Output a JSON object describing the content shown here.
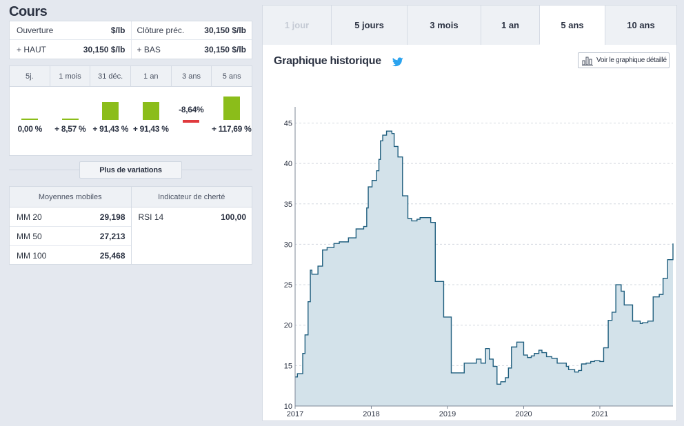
{
  "cours": {
    "title": "Cours",
    "rows": [
      [
        {
          "label": "Ouverture",
          "value": "$/lb"
        },
        {
          "label": "Clôture préc.",
          "value": "30,150 $/lb"
        }
      ],
      [
        {
          "label": "+ HAUT",
          "value": "30,150 $/lb"
        },
        {
          "label": "+ BAS",
          "value": "30,150 $/lb"
        }
      ]
    ]
  },
  "variations": {
    "periods": [
      "5j.",
      "1 mois",
      "31 déc.",
      "1 an",
      "3 ans",
      "5 ans"
    ],
    "values": [
      0.0,
      8.57,
      91.43,
      91.43,
      -8.64,
      117.69
    ],
    "labels": [
      "0,00 %",
      "+ 8,57 %",
      "+ 91,43 %",
      "+ 91,43 %",
      "-8,64%",
      "+ 117,69 %"
    ],
    "more_button": "Plus de variations",
    "pos_color": "#8bbd1a",
    "neg_color": "#e03a3e"
  },
  "indicators": {
    "moving_averages": {
      "header": "Moyennes mobiles",
      "rows": [
        {
          "label": "MM 20",
          "value": "29,198"
        },
        {
          "label": "MM 50",
          "value": "27,213"
        },
        {
          "label": "MM 100",
          "value": "25,468"
        }
      ]
    },
    "expensiveness": {
      "header": "Indicateur de cherté",
      "rows": [
        {
          "label": "RSI 14",
          "value": "100,00"
        }
      ]
    }
  },
  "tabs": [
    {
      "label": "1 jour",
      "state": "disabled"
    },
    {
      "label": "5 jours",
      "state": "normal"
    },
    {
      "label": "3 mois",
      "state": "normal"
    },
    {
      "label": "1 an",
      "state": "normal"
    },
    {
      "label": "5 ans",
      "state": "active"
    },
    {
      "label": "10 ans",
      "state": "normal"
    }
  ],
  "chart_panel": {
    "title": "Graphique historique",
    "share_icon": "bird-icon",
    "detail_button": "Voir le graphique détaillé"
  },
  "chart_data": {
    "type": "area",
    "title": "",
    "xlabel": "",
    "ylabel": "",
    "xlim": [
      2017.0,
      2021.96
    ],
    "ylim": [
      10,
      47
    ],
    "yticks": [
      10,
      15,
      20,
      25,
      30,
      35,
      40,
      45
    ],
    "xticks": [
      2017,
      2018,
      2019,
      2020,
      2021
    ],
    "xtick_labels": [
      "2017",
      "2018",
      "2019",
      "2020",
      "2021"
    ],
    "grid": "horizontal dashed",
    "line_color": "#1f5e7e",
    "fill_color": "#d3e2ea",
    "series": [
      {
        "x": [
          2017.0,
          2017.03,
          2017.1,
          2017.13,
          2017.17,
          2017.2,
          2017.22,
          2017.3,
          2017.36,
          2017.42,
          2017.51,
          2017.58,
          2017.7,
          2017.8,
          2017.9,
          2017.94,
          2017.96,
          2018.01,
          2018.07,
          2018.1,
          2018.12,
          2018.15,
          2018.2,
          2018.27,
          2018.3,
          2018.35,
          2018.41,
          2018.48,
          2018.53,
          2018.6,
          2018.64,
          2018.78,
          2018.84,
          2018.95,
          2019.05,
          2019.12,
          2019.22,
          2019.38,
          2019.44,
          2019.5,
          2019.55,
          2019.6,
          2019.65,
          2019.7,
          2019.76,
          2019.8,
          2019.84,
          2019.91,
          2020.0,
          2020.05,
          2020.1,
          2020.14,
          2020.2,
          2020.24,
          2020.3,
          2020.37,
          2020.44,
          2020.56,
          2020.59,
          2020.67,
          2020.72,
          2020.76,
          2020.82,
          2020.88,
          2020.93,
          2021.0,
          2021.05,
          2021.11,
          2021.16,
          2021.21,
          2021.28,
          2021.32,
          2021.43,
          2021.53,
          2021.56,
          2021.63,
          2021.7,
          2021.78,
          2021.83,
          2021.89,
          2021.96
        ],
        "values": [
          13.6,
          14.0,
          16.5,
          18.8,
          22.9,
          26.8,
          26.3,
          27.3,
          29.3,
          29.6,
          30.1,
          30.3,
          30.8,
          31.9,
          32.2,
          34.5,
          37.1,
          37.9,
          39.1,
          40.5,
          42.8,
          43.5,
          44.0,
          43.7,
          42.1,
          40.8,
          36.0,
          33.2,
          32.9,
          33.1,
          33.3,
          32.7,
          25.4,
          21.0,
          14.1,
          14.1,
          15.3,
          15.8,
          15.3,
          17.1,
          15.8,
          14.9,
          12.7,
          13.0,
          13.5,
          14.7,
          17.3,
          17.9,
          16.3,
          16.0,
          16.2,
          16.5,
          16.9,
          16.6,
          16.1,
          15.9,
          15.3,
          14.9,
          14.5,
          14.2,
          14.4,
          15.2,
          15.3,
          15.5,
          15.6,
          15.5,
          17.2,
          20.6,
          21.6,
          25.0,
          24.2,
          22.5,
          20.5,
          20.2,
          20.3,
          20.5,
          23.5,
          23.8,
          25.8,
          28.1,
          30.1
        ]
      }
    ]
  }
}
